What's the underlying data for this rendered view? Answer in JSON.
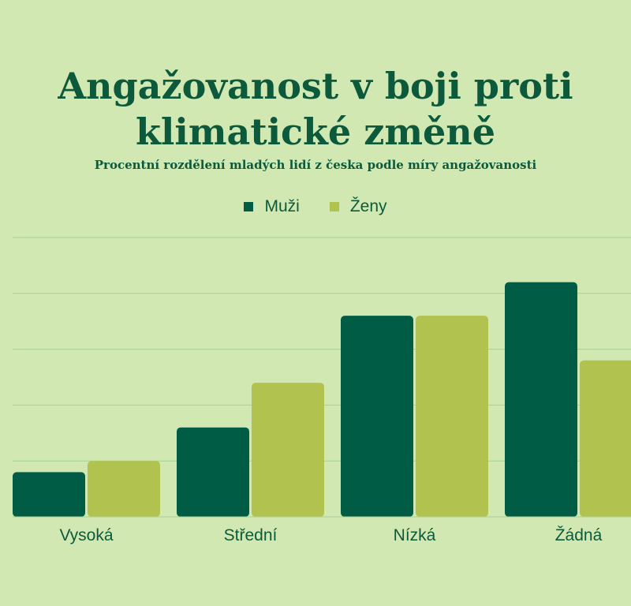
{
  "colors": {
    "background": "#d1e8b2",
    "text": "#0c5a3b",
    "muzi": "#005c45",
    "zeny": "#b2c24e",
    "grid": "#a9d08e"
  },
  "chart_data": {
    "type": "bar",
    "title": "Angažovanost v boji proti klimatické změně",
    "subtitle": "Procentní rozdělení mladých lidí z česka podle míry angažovanosti",
    "categories": [
      "Vysoká",
      "Střední",
      "Nízká",
      "Žádná"
    ],
    "series": [
      {
        "name": "Muži",
        "color": "#005c45",
        "values": [
          8,
          16,
          36,
          42
        ]
      },
      {
        "name": "Ženy",
        "color": "#b2c24e",
        "values": [
          10,
          24,
          36,
          28
        ]
      }
    ],
    "ylim": [
      0,
      50
    ],
    "grid": true,
    "legend_placement": "top-center"
  }
}
